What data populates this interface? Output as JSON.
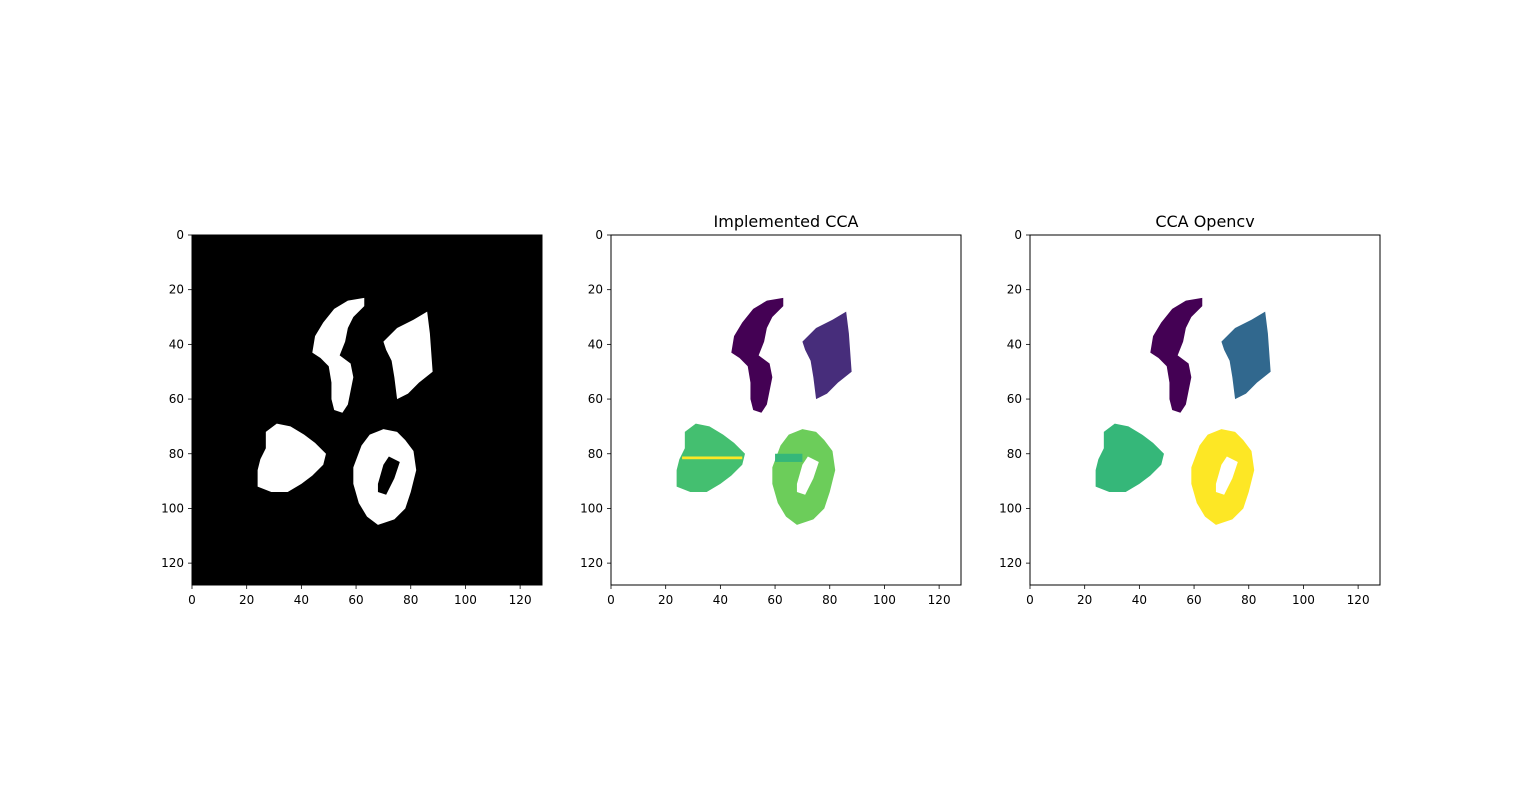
{
  "figure": {
    "panels": [
      {
        "title": "",
        "background": "#000000",
        "xticks": [
          "0",
          "20",
          "40",
          "60",
          "80",
          "100",
          "120"
        ],
        "yticks": [
          "0",
          "20",
          "40",
          "60",
          "80",
          "100",
          "120"
        ]
      },
      {
        "title": "Implemented CCA",
        "background": "#ffffff",
        "xticks": [
          "0",
          "20",
          "40",
          "60",
          "80",
          "100",
          "120"
        ],
        "yticks": [
          "0",
          "20",
          "40",
          "60",
          "80",
          "100",
          "120"
        ]
      },
      {
        "title": "CCA Opencv",
        "background": "#ffffff",
        "xticks": [
          "0",
          "20",
          "40",
          "60",
          "80",
          "100",
          "120"
        ],
        "yticks": [
          "0",
          "20",
          "40",
          "60",
          "80",
          "100",
          "120"
        ]
      }
    ],
    "image_size": [
      128,
      128
    ],
    "axis_limits": {
      "x": [
        0,
        128
      ],
      "y": [
        0,
        128
      ],
      "y_inverted": true
    }
  },
  "colors": {
    "binary_foreground": "#ffffff",
    "implemented": {
      "blob_s": "#440154",
      "blob_diamond": "#472d7b",
      "blob_heart": "#44bf70",
      "blob_heart_line": "#fde725",
      "blob_ring": "#6ccd5a",
      "blob_ring_patch": "#35b779"
    },
    "opencv": {
      "blob_s": "#440154",
      "blob_diamond": "#31688e",
      "blob_heart": "#35b779",
      "blob_ring": "#fde725"
    }
  }
}
